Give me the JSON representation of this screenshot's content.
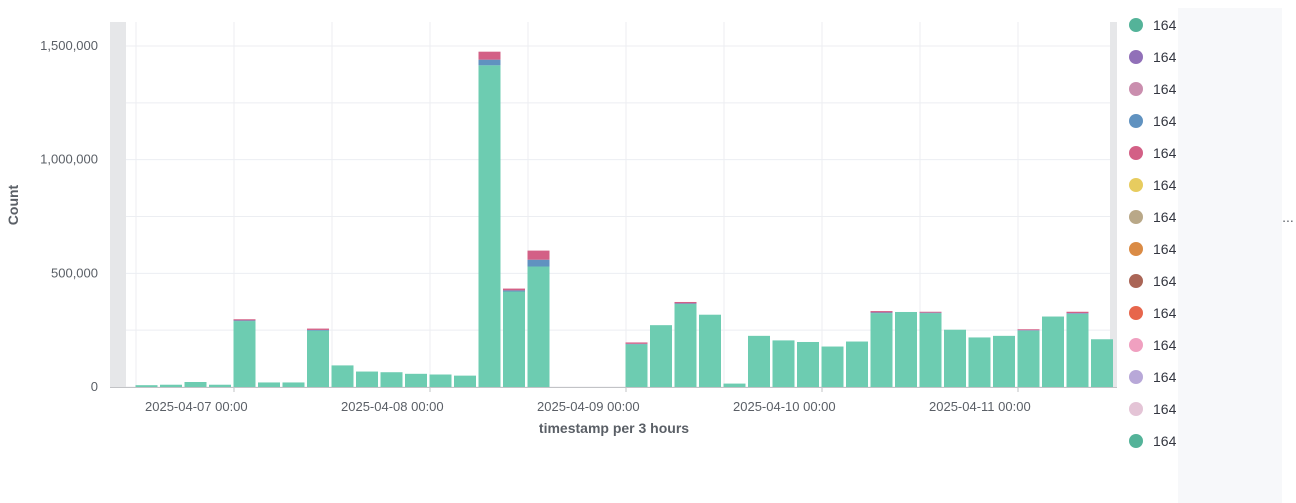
{
  "chart_data": {
    "type": "bar",
    "stacked": true,
    "xlabel": "timestamp per 3 hours",
    "ylabel": "Count",
    "ylim": [
      0,
      1600000
    ],
    "yticks": [
      0,
      500000,
      1000000,
      1500000
    ],
    "ytick_labels": [
      "0",
      "500,000",
      "1,000,000",
      "1,500,000"
    ],
    "xtick_labels": [
      "2025-04-07 00:00",
      "2025-04-08 00:00",
      "2025-04-09 00:00",
      "2025-04-10 00:00",
      "2025-04-11 00:00"
    ],
    "grid": true,
    "legend_position": "right",
    "bar_values": [
      [
        0,
        0,
        0
      ],
      [
        8000,
        0,
        0
      ],
      [
        10000,
        0,
        0
      ],
      [
        22000,
        0,
        0
      ],
      [
        10000,
        0,
        0
      ],
      [
        290000,
        3000,
        5000
      ],
      [
        20000,
        0,
        0
      ],
      [
        20000,
        0,
        0
      ],
      [
        248000,
        3000,
        6000
      ],
      [
        95000,
        0,
        0
      ],
      [
        68000,
        0,
        0
      ],
      [
        65000,
        0,
        0
      ],
      [
        58000,
        0,
        0
      ],
      [
        55000,
        0,
        0
      ],
      [
        50000,
        0,
        0
      ],
      [
        1415000,
        25000,
        35000
      ],
      [
        420000,
        5000,
        8000
      ],
      [
        530000,
        30000,
        40000
      ],
      [
        0,
        0,
        0
      ],
      [
        0,
        0,
        0
      ],
      [
        0,
        0,
        0
      ],
      [
        188000,
        2000,
        6000
      ],
      [
        272000,
        0,
        0
      ],
      [
        365000,
        3000,
        6000
      ],
      [
        318000,
        0,
        0
      ],
      [
        15000,
        0,
        0
      ],
      [
        225000,
        0,
        0
      ],
      [
        205000,
        0,
        0
      ],
      [
        198000,
        0,
        0
      ],
      [
        178000,
        0,
        0
      ],
      [
        200000,
        0,
        0
      ],
      [
        325000,
        3000,
        6000
      ],
      [
        330000,
        0,
        0
      ],
      [
        325000,
        2000,
        4000
      ],
      [
        252000,
        0,
        0
      ],
      [
        218000,
        0,
        0
      ],
      [
        225000,
        0,
        0
      ],
      [
        248000,
        2000,
        4000
      ],
      [
        310000,
        0,
        0
      ],
      [
        322000,
        3000,
        6000
      ],
      [
        210000,
        0,
        0
      ]
    ],
    "series_colors": [
      "#6dccb1",
      "#6092c0",
      "#d36086"
    ],
    "legend_entries": [
      {
        "label": "164",
        "color": "#54b399"
      },
      {
        "label": "164",
        "color": "#9170b8"
      },
      {
        "label": "164",
        "color": "#ca8eae"
      },
      {
        "label": "164",
        "color": "#6092c0"
      },
      {
        "label": "164",
        "color": "#d36086"
      },
      {
        "label": "164",
        "color": "#e7cc5f"
      },
      {
        "label": "164",
        "color": "#b9a888"
      },
      {
        "label": "164",
        "color": "#da8b45"
      },
      {
        "label": "164",
        "color": "#aa6556"
      },
      {
        "label": "164",
        "color": "#e7664c"
      },
      {
        "label": "164",
        "color": "#f0a0c0"
      },
      {
        "label": "164",
        "color": "#b8a8d8"
      },
      {
        "label": "164",
        "color": "#e4c4d6"
      },
      {
        "label": "164",
        "color": "#54b399"
      }
    ],
    "more_indicator": "..."
  }
}
